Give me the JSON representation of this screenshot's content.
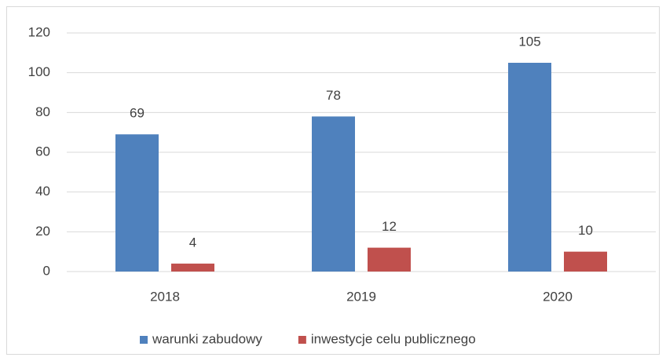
{
  "chart_data": {
    "type": "bar",
    "categories": [
      "2018",
      "2019",
      "2020"
    ],
    "series": [
      {
        "name": "warunki zabudowy",
        "color": "#4f81bd",
        "values": [
          69,
          78,
          105
        ]
      },
      {
        "name": "inwestycje celu publicznego",
        "color": "#c0504d",
        "values": [
          4,
          12,
          10
        ]
      }
    ],
    "ylim": [
      0,
      120
    ],
    "yticks": [
      0,
      20,
      40,
      60,
      80,
      100,
      120
    ],
    "grid": true,
    "legend": "bottom"
  }
}
